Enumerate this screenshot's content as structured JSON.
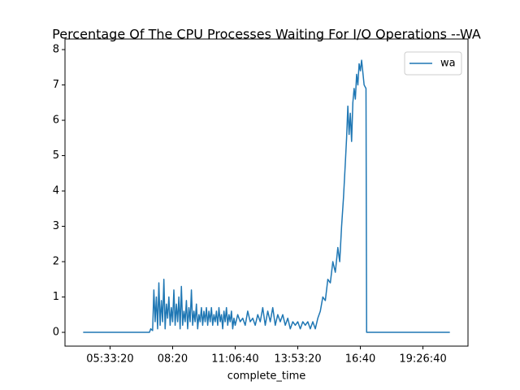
{
  "chart_data": {
    "type": "line",
    "title": "Percentage Of The CPU Processes Waiting For I/O Operations --WA",
    "x_label": "complete_time",
    "x": [
      15700,
      20000,
      24000,
      26300,
      26500,
      26800,
      27000,
      27200,
      27400,
      27600,
      27800,
      28000,
      28200,
      28400,
      28600,
      28800,
      29000,
      29200,
      29400,
      29600,
      29800,
      30000,
      30200,
      30400,
      30600,
      30800,
      31000,
      31200,
      31400,
      31600,
      31800,
      32000,
      32200,
      32400,
      32600,
      32800,
      33000,
      33200,
      33400,
      33600,
      33800,
      34000,
      34200,
      34400,
      34600,
      34800,
      35000,
      35200,
      35400,
      35600,
      35800,
      36000,
      36200,
      36400,
      36600,
      36800,
      37000,
      37200,
      37400,
      37600,
      37800,
      38000,
      38200,
      38400,
      38600,
      38800,
      39000,
      39200,
      39400,
      39600,
      39800,
      40000,
      40400,
      40800,
      41200,
      41600,
      42000,
      42400,
      42800,
      43200,
      43600,
      44000,
      44400,
      44800,
      45200,
      45600,
      46000,
      46400,
      46800,
      47200,
      47600,
      48000,
      48400,
      48800,
      49200,
      49600,
      50000,
      50400,
      50800,
      51200,
      51600,
      52000,
      52400,
      52800,
      53200,
      53600,
      54000,
      54400,
      54800,
      55200,
      55600,
      56000,
      56400,
      56700,
      57000,
      57300,
      57600,
      57800,
      58000,
      58200,
      58400,
      58600,
      58800,
      59000,
      59200,
      59400,
      59600,
      59800,
      60000,
      60200,
      60600,
      60900,
      61000,
      64000,
      70000,
      74300
    ],
    "series": [
      {
        "name": "wa",
        "color": "#1f77b4",
        "values": [
          0,
          0,
          0,
          0,
          0.1,
          0.05,
          1.2,
          0.3,
          1.0,
          0.1,
          1.4,
          0.2,
          0.9,
          0.3,
          1.5,
          0.1,
          0.8,
          0.4,
          1.0,
          0.2,
          0.7,
          0.3,
          1.2,
          0.2,
          0.8,
          0.3,
          1.0,
          0.1,
          1.3,
          0.2,
          0.6,
          0.3,
          0.9,
          0.1,
          0.7,
          0.3,
          1.2,
          0.2,
          0.6,
          0.3,
          0.8,
          0.1,
          0.5,
          0.3,
          0.7,
          0.2,
          0.6,
          0.3,
          0.7,
          0.2,
          0.6,
          0.3,
          0.7,
          0.2,
          0.5,
          0.3,
          0.6,
          0.2,
          0.7,
          0.3,
          0.5,
          0.1,
          0.6,
          0.3,
          0.7,
          0.2,
          0.5,
          0.3,
          0.6,
          0.1,
          0.4,
          0.2,
          0.5,
          0.3,
          0.4,
          0.2,
          0.6,
          0.3,
          0.4,
          0.2,
          0.5,
          0.3,
          0.7,
          0.2,
          0.6,
          0.3,
          0.7,
          0.2,
          0.5,
          0.3,
          0.5,
          0.2,
          0.4,
          0.1,
          0.3,
          0.2,
          0.3,
          0.1,
          0.3,
          0.2,
          0.3,
          0.1,
          0.3,
          0.1,
          0.4,
          0.6,
          1.0,
          0.9,
          1.5,
          1.4,
          2.0,
          1.7,
          2.4,
          2.0,
          3.0,
          3.8,
          4.8,
          5.5,
          6.4,
          5.6,
          6.2,
          5.4,
          6.5,
          6.9,
          6.6,
          7.3,
          7.0,
          7.6,
          7.4,
          7.7,
          7.0,
          6.9,
          0,
          0,
          0,
          0
        ]
      }
    ],
    "xlim": [
      12800,
      77200
    ],
    "xticks": [
      {
        "value": 20000,
        "label": "05:33:20"
      },
      {
        "value": 30000,
        "label": "08:20"
      },
      {
        "value": 40000,
        "label": "11:06:40"
      },
      {
        "value": 50000,
        "label": "13:53:20"
      },
      {
        "value": 60000,
        "label": "16:40"
      },
      {
        "value": 70000,
        "label": "19:26:40"
      }
    ],
    "ylim": [
      -0.39,
      8.3
    ],
    "yticks": [
      0,
      1,
      2,
      3,
      4,
      5,
      6,
      7,
      8
    ],
    "grid": false,
    "legend": "upper-right"
  }
}
